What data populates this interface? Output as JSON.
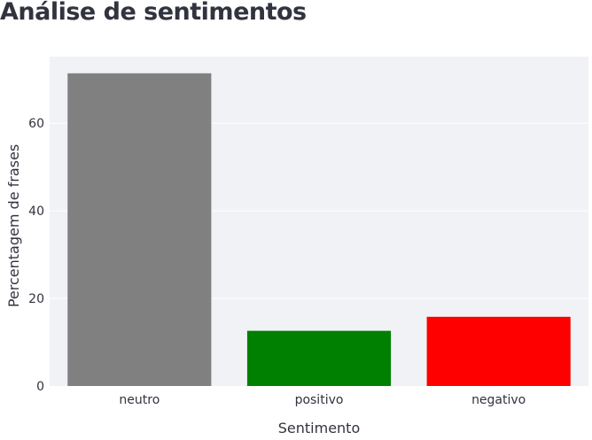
{
  "page": {
    "title": "Análise de sentimentos"
  },
  "chart_data": {
    "type": "bar",
    "title": "",
    "categories": [
      "neutro",
      "positivo",
      "negativo"
    ],
    "values": [
      71.4,
      12.6,
      15.8
    ],
    "colors": [
      "#808080",
      "#008000",
      "#ff0000"
    ],
    "xlabel": "Sentimento",
    "ylabel": "Percentagem de frases",
    "ylim": [
      0,
      75.2
    ],
    "yticks": [
      0,
      20,
      40,
      60
    ],
    "grid": true,
    "legend": "none",
    "plot_background": "#f0f2f6"
  }
}
